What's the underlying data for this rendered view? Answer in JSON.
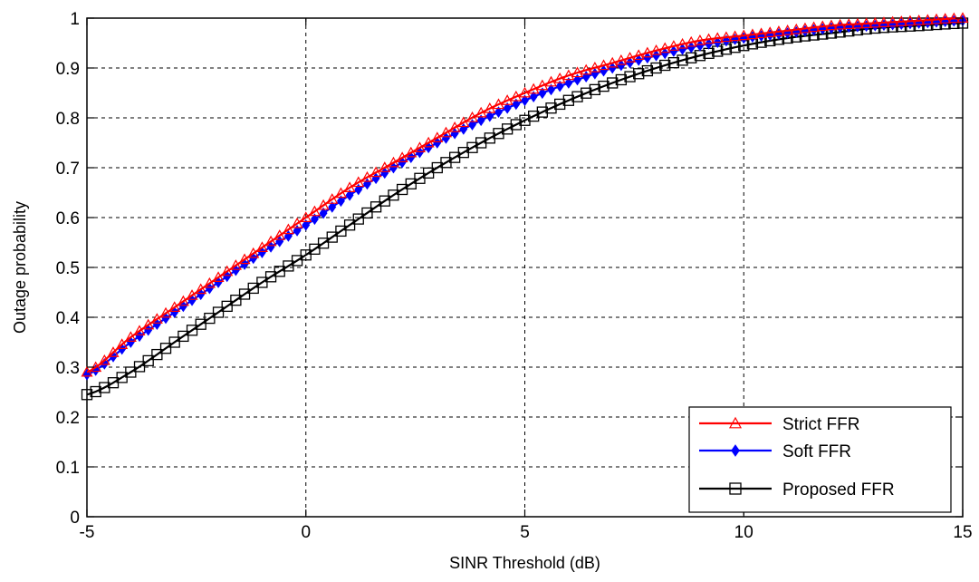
{
  "chart_data": {
    "type": "line",
    "title": "",
    "xlabel": "SINR Threshold (dB)",
    "ylabel": "Outage probability",
    "xlim": [
      -5,
      15
    ],
    "ylim": [
      0,
      1
    ],
    "xticks": [
      -5,
      0,
      5,
      10,
      15
    ],
    "yticks": [
      0,
      0.1,
      0.2,
      0.3,
      0.4,
      0.5,
      0.6,
      0.7,
      0.8,
      0.9,
      1
    ],
    "xtick_labels": [
      "-5",
      "0",
      "5",
      "10",
      "15"
    ],
    "ytick_labels": [
      "0",
      "0.1",
      "0.2",
      "0.3",
      "0.4",
      "0.5",
      "0.6",
      "0.7",
      "0.8",
      "0.9",
      "1"
    ],
    "grid": true,
    "legend_position": "bottom-right",
    "series": [
      {
        "name": "Strict FFR",
        "color": "#ff0000",
        "marker": "triangle",
        "x": [
          -5,
          -4,
          -3,
          -2,
          -1,
          0,
          1,
          2,
          3,
          4,
          5,
          6,
          7,
          8,
          9,
          10,
          11,
          12,
          13,
          14,
          15
        ],
        "y": [
          0.29,
          0.36,
          0.42,
          0.48,
          0.54,
          0.6,
          0.66,
          0.71,
          0.76,
          0.81,
          0.85,
          0.885,
          0.91,
          0.935,
          0.955,
          0.965,
          0.975,
          0.985,
          0.99,
          0.995,
          1.0
        ]
      },
      {
        "name": "Soft FFR",
        "color": "#0000ff",
        "marker": "diamond",
        "x": [
          -5,
          -4,
          -3,
          -2,
          -1,
          0,
          1,
          2,
          3,
          4,
          5,
          6,
          7,
          8,
          9,
          10,
          11,
          12,
          13,
          14,
          15
        ],
        "y": [
          0.285,
          0.35,
          0.41,
          0.47,
          0.53,
          0.585,
          0.645,
          0.7,
          0.75,
          0.795,
          0.835,
          0.87,
          0.9,
          0.925,
          0.945,
          0.96,
          0.97,
          0.98,
          0.985,
          0.99,
          0.995
        ]
      },
      {
        "name": "Proposed FFR",
        "color": "#000000",
        "marker": "square",
        "x": [
          -5,
          -4,
          -3,
          -2,
          -1,
          0,
          1,
          2,
          3,
          4,
          5,
          6,
          7,
          8,
          9,
          10,
          11,
          12,
          13,
          14,
          15
        ],
        "y": [
          0.245,
          0.29,
          0.35,
          0.41,
          0.47,
          0.525,
          0.585,
          0.645,
          0.7,
          0.75,
          0.795,
          0.835,
          0.87,
          0.9,
          0.925,
          0.945,
          0.96,
          0.97,
          0.98,
          0.985,
          0.99
        ]
      }
    ]
  }
}
